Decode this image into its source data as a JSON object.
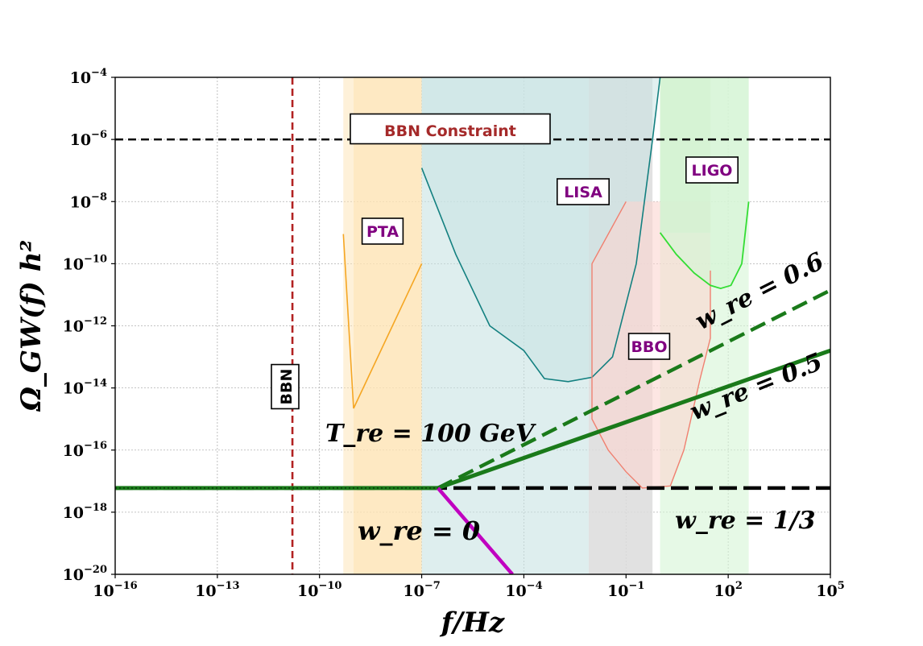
{
  "chart_data": {
    "type": "line",
    "xlabel": "f/Hz",
    "ylabel": "Ω_GW(f) h²",
    "x_scale": "log",
    "y_scale": "log",
    "xlim": [
      1e-16,
      100000.0
    ],
    "ylim": [
      1e-20,
      0.0001
    ],
    "grid": true,
    "x_ticks": [
      {
        "base": "10",
        "exp": "−16",
        "value": 1e-16
      },
      {
        "base": "10",
        "exp": "−13",
        "value": 1e-13
      },
      {
        "base": "10",
        "exp": "−10",
        "value": 1e-10
      },
      {
        "base": "10",
        "exp": "−7",
        "value": 1e-07
      },
      {
        "base": "10",
        "exp": "−4",
        "value": 0.0001
      },
      {
        "base": "10",
        "exp": "−1",
        "value": 0.1
      },
      {
        "base": "10",
        "exp": "2",
        "value": 100.0
      },
      {
        "base": "10",
        "exp": "5",
        "value": 100000.0
      }
    ],
    "y_ticks": [
      {
        "base": "10",
        "exp": "−4",
        "value": 0.0001
      },
      {
        "base": "10",
        "exp": "−6",
        "value": 1e-06
      },
      {
        "base": "10",
        "exp": "−8",
        "value": 1e-08
      },
      {
        "base": "10",
        "exp": "−10",
        "value": 1e-10
      },
      {
        "base": "10",
        "exp": "−12",
        "value": 1e-12
      },
      {
        "base": "10",
        "exp": "−14",
        "value": 1e-14
      },
      {
        "base": "10",
        "exp": "−16",
        "value": 1e-16
      },
      {
        "base": "10",
        "exp": "−18",
        "value": 1e-18
      },
      {
        "base": "10",
        "exp": "−20",
        "value": 1e-20
      }
    ],
    "reference_lines": {
      "bbn_constraint": {
        "y": 1e-06,
        "label": "BBN Constraint",
        "color": "#000000"
      },
      "bbn_frequency": {
        "x": 1.6e-11,
        "label": "BBN",
        "color": "#b22222"
      }
    },
    "series": [
      {
        "label": "w_re = 1/3",
        "color": "#000000",
        "style": "dashed",
        "points": [
          [
            1e-16,
            6e-18
          ],
          [
            100000.0,
            6e-18
          ]
        ]
      },
      {
        "label": "w_re = 0.5",
        "color": "#1a7a1a",
        "style": "solid",
        "points": [
          [
            1e-16,
            6e-18
          ],
          [
            3e-07,
            6e-18
          ],
          [
            100000.0,
            1.6e-13
          ]
        ]
      },
      {
        "label": "w_re = 0.6",
        "color": "#1a7a1a",
        "style": "dashed",
        "points": [
          [
            3e-07,
            6e-18
          ],
          [
            100000.0,
            1.4e-11
          ]
        ]
      },
      {
        "label": "w_re = 0",
        "color": "#c000c0",
        "style": "solid",
        "points": [
          [
            3e-07,
            6e-18
          ],
          [
            4.6e-05,
            1e-20
          ]
        ]
      }
    ],
    "detectors": [
      {
        "name": "PTA",
        "fill": "#fde4b4",
        "line": "#f5a623",
        "label_color": "#800080",
        "band": [
          [
            1e-09,
            0.0001
          ],
          [
            1e-07,
            0.0001
          ]
        ],
        "curve": [
          [
            5e-10,
            9e-10
          ],
          [
            1e-09,
            2.2e-15
          ],
          [
            1e-07,
            1e-10
          ]
        ]
      },
      {
        "name": "LISA",
        "fill": "#c8e3e3",
        "line": "#138080",
        "label_color": "#800080",
        "band": [
          [
            1e-07,
            0.0001
          ],
          [
            0.008,
            0.0001
          ]
        ],
        "curve": [
          [
            1e-07,
            1.2e-07
          ],
          [
            1e-06,
            2e-10
          ],
          [
            1e-05,
            1e-12
          ],
          [
            0.0001,
            1.6e-13
          ],
          [
            0.0004,
            2e-14
          ],
          [
            0.002,
            1.6e-14
          ],
          [
            0.01,
            2.2e-14
          ],
          [
            0.04,
            1e-13
          ],
          [
            0.2,
            1e-10
          ],
          [
            0.6,
            1e-06
          ],
          [
            1,
            0.0001
          ]
        ]
      },
      {
        "name": "BBO",
        "fill": "#fbd5d0",
        "line": "#f08070",
        "label_color": "#800080",
        "curve": [
          [
            0.1,
            1e-08
          ],
          [
            0.01,
            1e-10
          ],
          [
            0.01,
            1e-15
          ],
          [
            0.03,
            1e-16
          ],
          [
            0.1,
            2e-17
          ],
          [
            0.3,
            6e-18
          ],
          [
            2,
            7e-18
          ],
          [
            5,
            1e-16
          ],
          [
            15,
            2e-14
          ],
          [
            30,
            4e-13
          ],
          [
            30,
            6e-11
          ]
        ]
      },
      {
        "name": "LIGO",
        "fill": "#d6f5d6",
        "line": "#33dd33",
        "label_color": "#800080",
        "band": [
          [
            1,
            0.0001
          ],
          [
            400,
            0.0001
          ]
        ],
        "curve": [
          [
            1,
            1e-09
          ],
          [
            3,
            2e-10
          ],
          [
            10,
            5e-11
          ],
          [
            30,
            2e-11
          ],
          [
            60,
            1.6e-11
          ],
          [
            120,
            2e-11
          ],
          [
            250,
            1e-10
          ],
          [
            400,
            1e-08
          ]
        ]
      }
    ],
    "annotations": [
      {
        "key": "tre",
        "text": "T_re = 100 GeV"
      },
      {
        "key": "w0",
        "text": "w_re = 0"
      },
      {
        "key": "w05",
        "text": "w_re = 0.5"
      },
      {
        "key": "w06",
        "text": "w_re = 0.6"
      },
      {
        "key": "w13",
        "text": "w_re = 1/3"
      }
    ]
  }
}
